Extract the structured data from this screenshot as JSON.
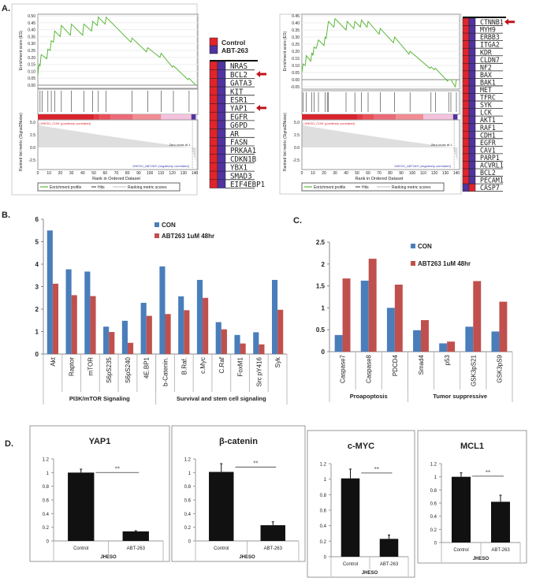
{
  "panel_labels": {
    "a": "A.",
    "b": "B.",
    "c": "C.",
    "d": "D."
  },
  "colors": {
    "con": "#4a7ebb",
    "abt": "#c0504d",
    "es_line": "#5cb83a",
    "heat_red": "#e0242c",
    "heat_blue": "#5033a0",
    "arrow": "#c0141c",
    "black": "#111111"
  },
  "gsea_common": {
    "es_ylabel": "Enrichment score (ES)",
    "metric_ylabel": "Ranked list metric (Signal2Noise)",
    "xlabel": "Rank in Ordered Dataset",
    "pos_label": "'JHESO_CON' (positively correlated)",
    "neg_label": "'JHESO_ABT263' (negatively correlated)",
    "zero_cross": "Zero cross at 1",
    "legend": [
      "Enrichment profile",
      "Hits",
      "Ranking metric scores"
    ],
    "x_ticks": [
      0,
      10,
      20,
      30,
      40,
      50,
      60,
      70,
      80,
      90,
      100,
      110,
      120,
      130,
      140
    ],
    "metric_ticks": [
      "5.0",
      "2.5",
      "0.0",
      "-2.5"
    ]
  },
  "heatmap_legend": {
    "control": "Control",
    "abt": "ABT-263"
  },
  "chart_data": [
    {
      "type": "line",
      "panel": "A-left",
      "ylim": [
        0,
        0.5
      ],
      "y_ticks": [
        "0.00",
        "0.05",
        "0.10",
        "0.15",
        "0.20",
        "0.25",
        "0.30",
        "0.35",
        "0.40",
        "0.45",
        "0.50"
      ],
      "es_curve": [
        [
          0,
          0.07
        ],
        [
          1,
          0.15
        ],
        [
          2,
          0.14
        ],
        [
          3,
          0.22
        ],
        [
          8,
          0.19
        ],
        [
          9,
          0.26
        ],
        [
          11,
          0.25
        ],
        [
          12,
          0.32
        ],
        [
          14,
          0.31
        ],
        [
          15,
          0.39
        ],
        [
          20,
          0.35
        ],
        [
          21,
          0.43
        ],
        [
          29,
          0.36
        ],
        [
          30,
          0.44
        ],
        [
          40,
          0.36
        ],
        [
          41,
          0.44
        ],
        [
          48,
          0.39
        ],
        [
          49,
          0.46
        ],
        [
          53,
          0.43
        ],
        [
          54,
          0.49
        ],
        [
          60,
          0.44
        ],
        [
          61,
          0.49
        ],
        [
          83,
          0.31
        ],
        [
          84,
          0.34
        ],
        [
          97,
          0.24
        ],
        [
          98,
          0.27
        ],
        [
          109,
          0.2
        ],
        [
          110,
          0.23
        ],
        [
          120,
          0.13
        ],
        [
          121,
          0.14
        ],
        [
          134,
          0.04
        ],
        [
          135,
          0.05
        ],
        [
          141,
          0
        ]
      ],
      "hits": [
        2,
        4,
        9,
        12,
        15,
        21,
        30,
        41,
        49,
        54,
        61,
        84,
        98,
        110,
        121,
        135
      ],
      "genes": [
        "NRAS",
        "BCL2",
        "GATA3",
        "KIT",
        "ESR1",
        "YAP1",
        "EGFR",
        "G6PD",
        "AR",
        "FASN",
        "PRKAA1",
        "CDKN1B",
        "YBX1",
        "SMAD3",
        "EIF4EBP1"
      ],
      "arrow_genes": [
        "BCL2",
        "YAP1"
      ],
      "reversed_genes": []
    },
    {
      "type": "line",
      "panel": "A-right",
      "ylim": [
        -0.05,
        0.45
      ],
      "y_ticks": [
        "-0.05",
        "0.00",
        "0.05",
        "0.10",
        "0.15",
        "0.20",
        "0.25",
        "0.30",
        "0.35",
        "0.40",
        "0.45"
      ],
      "es_curve": [
        [
          0,
          0.05
        ],
        [
          1,
          0.11
        ],
        [
          3,
          0.1
        ],
        [
          4,
          0.17
        ],
        [
          8,
          0.13
        ],
        [
          9,
          0.19
        ],
        [
          10,
          0.17
        ],
        [
          11,
          0.23
        ],
        [
          13,
          0.22
        ],
        [
          15,
          0.28
        ],
        [
          20,
          0.24
        ],
        [
          21,
          0.3
        ],
        [
          22,
          0.29
        ],
        [
          24,
          0.41
        ],
        [
          29,
          0.37
        ],
        [
          30,
          0.43
        ],
        [
          40,
          0.35
        ],
        [
          41,
          0.41
        ],
        [
          47,
          0.36
        ],
        [
          48,
          0.41
        ],
        [
          53,
          0.37
        ],
        [
          54,
          0.42
        ],
        [
          59,
          0.37
        ],
        [
          60,
          0.41
        ],
        [
          70,
          0.32
        ],
        [
          71,
          0.36
        ],
        [
          83,
          0.26
        ],
        [
          84,
          0.3
        ],
        [
          97,
          0.18
        ],
        [
          98,
          0.2
        ],
        [
          116,
          0.08
        ],
        [
          117,
          0.09
        ],
        [
          120,
          0.07
        ],
        [
          121,
          0.08
        ],
        [
          132,
          -0.01
        ],
        [
          133,
          0
        ],
        [
          135,
          0
        ],
        [
          139,
          -0.05
        ],
        [
          140,
          0
        ]
      ],
      "hits": [
        1,
        4,
        9,
        11,
        15,
        21,
        23,
        24,
        40,
        48,
        54,
        60,
        71,
        84,
        98,
        117,
        121,
        133,
        135,
        140
      ],
      "genes": [
        "CTNNB1",
        "MYH9",
        "ERBB3",
        "ITGA2",
        "KDR",
        "CLDN7",
        "NF2",
        "BAX",
        "BAK1",
        "MET",
        "TFRC",
        "SYK",
        "LCK",
        "AKT1",
        "RAF1",
        "CDH1",
        "EGFR",
        "CAV1",
        "PARP1",
        "ACVRL1",
        "BCL2",
        "PECAM1",
        "CASP7"
      ],
      "arrow_genes": [
        "CTNNB1"
      ],
      "reversed_genes": [
        "CASP7"
      ]
    },
    {
      "type": "bar",
      "panel": "B",
      "ylim": [
        0,
        6
      ],
      "y_ticks": [
        "0",
        "1",
        "2",
        "3",
        "4",
        "5",
        "6"
      ],
      "categories": [
        "Akt",
        "Raptor",
        "mTOR",
        "S6pS235",
        "S6pS240",
        "4E.BP1",
        "b-Catenin.",
        "B.Raf.",
        "c.Myc",
        "C.Raf",
        "FoxM1",
        "Src pY416",
        "Syk"
      ],
      "series": [
        {
          "name": "CON",
          "values": [
            5.5,
            3.77,
            3.67,
            1.22,
            1.48,
            2.28,
            3.9,
            2.57,
            3.3,
            1.42,
            0.85,
            0.97,
            3.3
          ]
        },
        {
          "name": "ABT263 1uM 48hr",
          "values": [
            3.13,
            2.62,
            2.58,
            0.98,
            0.5,
            1.7,
            1.78,
            1.95,
            2.5,
            1.1,
            0.47,
            0.43,
            1.97
          ]
        }
      ],
      "groups": [
        {
          "label": "PI3K/mTOR Signaling",
          "count": 6
        },
        {
          "label": "Survival and stem cell signaling",
          "count": 7
        }
      ],
      "legend": "top-right"
    },
    {
      "type": "bar",
      "panel": "C",
      "ylim": [
        0,
        2.5
      ],
      "y_ticks": [
        "0",
        "0.5",
        "1",
        "1.5",
        "2",
        "2.5"
      ],
      "categories": [
        "Caspase7",
        "Caspase8",
        "PDCD4",
        "Smad4",
        "p53",
        "GSK3pS21",
        "GSK3pS9"
      ],
      "series": [
        {
          "name": "CON",
          "values": [
            0.38,
            1.62,
            1.0,
            0.49,
            0.19,
            0.57,
            0.46
          ]
        },
        {
          "name": "ABT263 1uM 48hr",
          "values": [
            1.67,
            2.12,
            1.53,
            0.72,
            0.23,
            1.61,
            1.14
          ]
        }
      ],
      "groups": [
        {
          "label": "Proapoptosis",
          "count": 3
        },
        {
          "label": "Tumor suppressive",
          "count": 4
        }
      ],
      "legend": "top-right"
    },
    {
      "type": "bar",
      "panel": "D1",
      "title": "YAP1",
      "categories": [
        "Control",
        "ABT-263"
      ],
      "group": "JHESO",
      "values": [
        1.0,
        0.14
      ],
      "errors": [
        0.05,
        0.01
      ],
      "ylim": [
        0,
        1.2
      ],
      "y_ticks": [
        "0",
        "0.2",
        "0.4",
        "0.6",
        "0.8",
        "1",
        "1.2"
      ],
      "significance": "**"
    },
    {
      "type": "bar",
      "panel": "D2",
      "title": "β-catenin",
      "categories": [
        "Control",
        "ABT-263"
      ],
      "group": "JHESO",
      "values": [
        1.01,
        0.23
      ],
      "errors": [
        0.12,
        0.05
      ],
      "ylim": [
        0,
        1.2
      ],
      "y_ticks": [
        "0",
        "0.2",
        "0.4",
        "0.6",
        "0.8",
        "1",
        "1.2"
      ],
      "significance": "**"
    },
    {
      "type": "bar",
      "panel": "D3",
      "title": "c-MYC",
      "categories": [
        "Control",
        "ABT-263"
      ],
      "group": "JHESO",
      "values": [
        1.01,
        0.23
      ],
      "errors": [
        0.12,
        0.05
      ],
      "ylim": [
        0,
        1.2
      ],
      "y_ticks": [
        "0",
        "0.2",
        "0.4",
        "0.6",
        "0.8",
        "1",
        "1.2"
      ],
      "significance": "**"
    },
    {
      "type": "bar",
      "panel": "D4",
      "title": "MCL1",
      "categories": [
        "Control",
        "ABT-263"
      ],
      "group": "JHESO",
      "values": [
        1.0,
        0.62
      ],
      "errors": [
        0.06,
        0.1
      ],
      "ylim": [
        0,
        1.2
      ],
      "y_ticks": [
        "0",
        "0.2",
        "0.4",
        "0.6",
        "0.8",
        "1",
        "1.2"
      ],
      "significance": "**"
    }
  ]
}
